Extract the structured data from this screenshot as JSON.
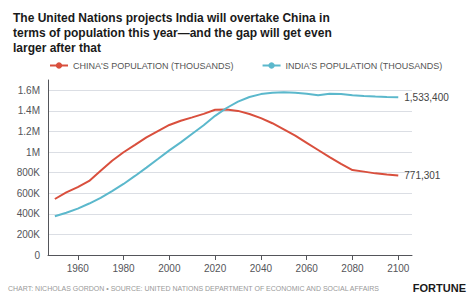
{
  "chart_data": {
    "type": "line",
    "title": "The United Nations projects India will overtake China in\nterms of population this year—and the gap will get even\nlarger after that",
    "x": [
      1950,
      1955,
      1960,
      1965,
      1970,
      1975,
      1980,
      1985,
      1990,
      1995,
      2000,
      2005,
      2010,
      2015,
      2020,
      2025,
      2030,
      2035,
      2040,
      2045,
      2050,
      2055,
      2060,
      2065,
      2070,
      2075,
      2080,
      2085,
      2090,
      2095,
      2100
    ],
    "series": [
      {
        "name": "CHINA'S POPULATION (THOUSANDS)",
        "color": "#d94f3d",
        "values": [
          544000,
          608000,
          660000,
          720000,
          818000,
          916000,
          998000,
          1070000,
          1143000,
          1204000,
          1263000,
          1304000,
          1337000,
          1371000,
          1411000,
          1413000,
          1400000,
          1370000,
          1330000,
          1280000,
          1220000,
          1160000,
          1090000,
          1020000,
          950000,
          885000,
          825000,
          810000,
          793000,
          782000,
          771301
        ]
      },
      {
        "name": "INDIA'S POPULATION (THOUSANDS)",
        "color": "#5bb8cc",
        "values": [
          376000,
          410000,
          450000,
          500000,
          555000,
          620000,
          690000,
          768000,
          849000,
          932000,
          1016000,
          1094000,
          1178000,
          1261000,
          1352000,
          1428000,
          1490000,
          1535000,
          1563000,
          1577000,
          1580000,
          1576000,
          1566000,
          1551000,
          1567000,
          1563000,
          1553000,
          1545000,
          1540000,
          1536000,
          1533400
        ]
      }
    ],
    "xlim": [
      1947,
      2106
    ],
    "xticks": [
      1960,
      1980,
      2000,
      2020,
      2040,
      2060,
      2080,
      2100
    ],
    "ylim": [
      0,
      1700000
    ],
    "yticks": [
      0,
      {
        "value": 200000,
        "label": "200K"
      },
      {
        "value": 400000,
        "label": "400K"
      },
      {
        "value": 600000,
        "label": "600K"
      },
      {
        "value": 800000,
        "label": "800K"
      },
      {
        "value": 1000000,
        "label": "1M"
      },
      {
        "value": 1200000,
        "label": "1.2M"
      },
      {
        "value": 1400000,
        "label": "1.4M"
      },
      {
        "value": 1600000,
        "label": "1.6M"
      }
    ],
    "grid": true,
    "legend": "upper left",
    "annotations": [
      {
        "text": "1,533,400",
        "x": 2100,
        "y": 1533400
      },
      {
        "text": "771,301",
        "x": 2100,
        "y": 771301
      },
      {
        "text": "CHART: NICHOLAS GORDON • SOURCE: UNITED NATIONS DEPARTMENT OF ECONOMIC AND SOCIAL AFFAIRS"
      },
      {
        "text": "FORTUNE"
      }
    ]
  }
}
